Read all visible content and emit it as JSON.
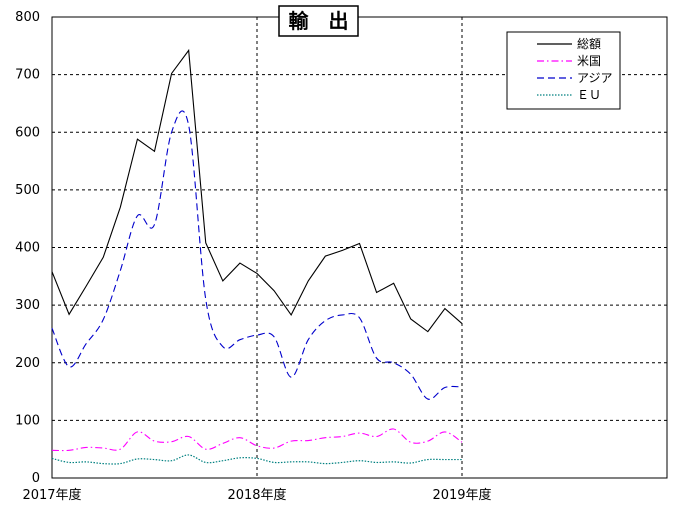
{
  "chart_data": {
    "type": "line",
    "title": "輸　出",
    "xlabel": "",
    "ylabel": "",
    "ylim": [
      0,
      800
    ],
    "yticks": [
      0,
      100,
      200,
      300,
      400,
      500,
      600,
      700,
      800
    ],
    "xticks": [
      {
        "x": 0,
        "label": "2017年度"
      },
      {
        "x": 12,
        "label": "2018年度"
      },
      {
        "x": 24,
        "label": "2019年度"
      }
    ],
    "xlim": [
      0,
      36
    ],
    "grid": "dashed at year boundaries and every 100",
    "legend": "top-right",
    "x": [
      0,
      1,
      2,
      3,
      4,
      5,
      6,
      7,
      8,
      9,
      10,
      11,
      12,
      13,
      14,
      15,
      16,
      17,
      18,
      19,
      20,
      21,
      22,
      23,
      24
    ],
    "series": [
      {
        "name": "総額",
        "color": "#000000",
        "dash": "solid",
        "values": [
          358,
          284,
          333,
          383,
          470,
          588,
          567,
          702,
          742,
          408,
          342,
          373,
          355,
          325,
          283,
          342,
          385,
          395,
          407,
          322,
          338,
          276,
          254,
          294,
          268
        ]
      },
      {
        "name": "米国",
        "color": "#ff00ff",
        "dash": "dashdot",
        "values": [
          48,
          48,
          53,
          52,
          50,
          80,
          64,
          63,
          72,
          50,
          60,
          70,
          56,
          52,
          64,
          65,
          70,
          72,
          78,
          72,
          85,
          62,
          64,
          80,
          62
        ]
      },
      {
        "name": "アジア",
        "color": "#0000cc",
        "dash": "dashed",
        "values": [
          260,
          193,
          233,
          275,
          360,
          455,
          440,
          600,
          612,
          310,
          228,
          240,
          248,
          245,
          175,
          240,
          273,
          283,
          278,
          208,
          200,
          180,
          137,
          157,
          158
        ]
      },
      {
        "name": "ＥＵ",
        "color": "#008080",
        "dash": "dotted",
        "values": [
          34,
          27,
          28,
          25,
          25,
          33,
          32,
          30,
          40,
          27,
          30,
          35,
          34,
          27,
          28,
          28,
          25,
          27,
          30,
          27,
          28,
          26,
          32,
          32,
          32
        ]
      }
    ]
  }
}
